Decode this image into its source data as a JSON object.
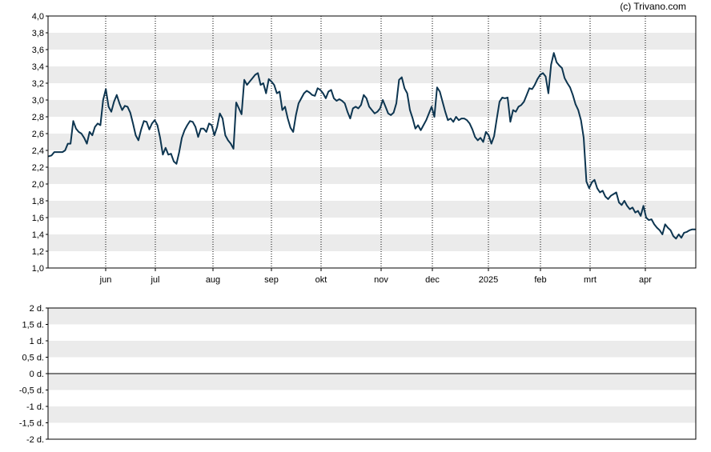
{
  "copyright": "(c) Trivano.com",
  "chart_data": [
    {
      "type": "line",
      "x_ticks": [
        "jun",
        "jul",
        "aug",
        "sep",
        "okt",
        "nov",
        "dec",
        "2025",
        "feb",
        "mrt",
        "apr"
      ],
      "y_ticks": [
        "4,0",
        "3,8",
        "3,6",
        "3,4",
        "3,2",
        "3,0",
        "2,8",
        "2,6",
        "2,4",
        "2,2",
        "2,0",
        "1,8",
        "1,6",
        "1,4",
        "1,2",
        "1,0"
      ],
      "ylim": [
        1.0,
        4.0
      ],
      "grid": "alternating horizontal bands, dotted vertical month lines",
      "series": [
        {
          "color": "#0d3550",
          "values": [
            2.33,
            2.34,
            2.38,
            2.38,
            2.38,
            2.38,
            2.4,
            2.48,
            2.48,
            2.75,
            2.66,
            2.62,
            2.6,
            2.55,
            2.48,
            2.62,
            2.58,
            2.68,
            2.72,
            2.7,
            3.0,
            3.13,
            2.92,
            2.86,
            2.98,
            3.06,
            2.96,
            2.88,
            2.93,
            2.92,
            2.85,
            2.72,
            2.58,
            2.52,
            2.65,
            2.75,
            2.74,
            2.65,
            2.72,
            2.76,
            2.7,
            2.55,
            2.35,
            2.43,
            2.35,
            2.36,
            2.27,
            2.24,
            2.38,
            2.55,
            2.64,
            2.7,
            2.75,
            2.74,
            2.68,
            2.56,
            2.66,
            2.66,
            2.62,
            2.72,
            2.7,
            2.58,
            2.68,
            2.84,
            2.78,
            2.58,
            2.52,
            2.48,
            2.42,
            2.97,
            2.9,
            2.83,
            3.24,
            3.18,
            3.22,
            3.26,
            3.3,
            3.32,
            3.18,
            3.2,
            3.08,
            3.25,
            3.22,
            3.18,
            3.08,
            3.1,
            2.88,
            2.92,
            2.78,
            2.67,
            2.62,
            2.82,
            2.96,
            3.02,
            3.08,
            3.11,
            3.09,
            3.06,
            3.05,
            3.14,
            3.12,
            3.08,
            3.02,
            3.1,
            3.12,
            3.02,
            2.99,
            3.01,
            2.99,
            2.96,
            2.86,
            2.78,
            2.9,
            2.92,
            2.9,
            2.94,
            3.06,
            3.02,
            2.92,
            2.88,
            2.84,
            2.86,
            2.9,
            3.0,
            2.92,
            2.84,
            2.82,
            2.85,
            2.96,
            3.24,
            3.27,
            3.14,
            3.08,
            2.88,
            2.78,
            2.66,
            2.7,
            2.64,
            2.7,
            2.76,
            2.84,
            2.92,
            2.8,
            3.15,
            3.1,
            2.98,
            2.86,
            2.76,
            2.78,
            2.74,
            2.8,
            2.76,
            2.78,
            2.78,
            2.76,
            2.72,
            2.65,
            2.56,
            2.52,
            2.55,
            2.5,
            2.62,
            2.58,
            2.48,
            2.57,
            2.78,
            2.98,
            3.03,
            3.02,
            3.03,
            2.74,
            2.88,
            2.86,
            2.92,
            2.94,
            2.98,
            3.06,
            3.14,
            3.13,
            3.18,
            3.25,
            3.3,
            3.32,
            3.28,
            3.08,
            3.42,
            3.56,
            3.45,
            3.41,
            3.38,
            3.26,
            3.2,
            3.15,
            3.06,
            2.95,
            2.88,
            2.76,
            2.55,
            2.03,
            1.95,
            2.02,
            2.05,
            1.95,
            1.9,
            1.92,
            1.85,
            1.82,
            1.86,
            1.88,
            1.9,
            1.78,
            1.75,
            1.8,
            1.74,
            1.7,
            1.72,
            1.66,
            1.68,
            1.62,
            1.74,
            1.6,
            1.57,
            1.58,
            1.52,
            1.48,
            1.45,
            1.4,
            1.52,
            1.48,
            1.45,
            1.38,
            1.35,
            1.4,
            1.36,
            1.42,
            1.43,
            1.45,
            1.46,
            1.46
          ]
        }
      ]
    },
    {
      "type": "line",
      "y_ticks": [
        "2 d.",
        "1,5 d.",
        "1 d.",
        "0,5 d.",
        "0 d.",
        "-0,5 d.",
        "-1 d.",
        "-1,5 d.",
        "-2 d."
      ],
      "ylim": [
        -2,
        2
      ],
      "grid": "alternating horizontal bands",
      "series": []
    }
  ]
}
